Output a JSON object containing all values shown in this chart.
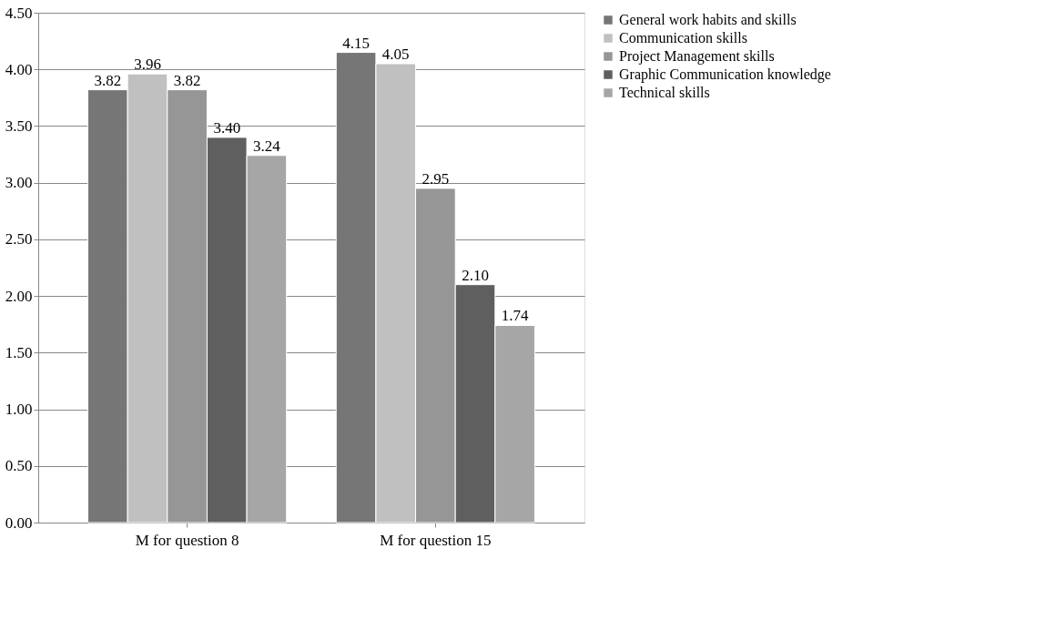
{
  "chart_data": {
    "type": "bar",
    "categories": [
      "M for question 8",
      "M for question 15"
    ],
    "series": [
      {
        "name": "General work habits and skills",
        "color": "#767676",
        "values": [
          3.82,
          4.15
        ],
        "value_labels": [
          "3.82",
          "4.15"
        ]
      },
      {
        "name": "Communication skills",
        "color": "#c0c0c0",
        "values": [
          3.96,
          4.05
        ],
        "value_labels": [
          "3.96",
          "4.05"
        ]
      },
      {
        "name": "Project Management skills",
        "color": "#969696",
        "values": [
          3.82,
          2.95
        ],
        "value_labels": [
          "3.82",
          "2.95"
        ]
      },
      {
        "name": "Graphic Communication knowledge",
        "color": "#5f5f5f",
        "values": [
          3.4,
          2.1
        ],
        "value_labels": [
          "3.40",
          "2.10"
        ]
      },
      {
        "name": "Technical skills",
        "color": "#a6a6a6",
        "values": [
          3.24,
          1.74
        ],
        "value_labels": [
          "3.24",
          "1.74"
        ]
      }
    ],
    "ylim": [
      0,
      4.5
    ],
    "yticks": [
      {
        "value": 0,
        "label": "0.00"
      },
      {
        "value": 0.5,
        "label": "0.50"
      },
      {
        "value": 1,
        "label": "1.00"
      },
      {
        "value": 1.5,
        "label": "1.50"
      },
      {
        "value": 2,
        "label": "2.00"
      },
      {
        "value": 2.5,
        "label": "2.50"
      },
      {
        "value": 3,
        "label": "3.00"
      },
      {
        "value": 3.5,
        "label": "3.50"
      },
      {
        "value": 4,
        "label": "4.00"
      },
      {
        "value": 4.5,
        "label": "4.50"
      }
    ],
    "grid": "y",
    "legend": "right"
  }
}
